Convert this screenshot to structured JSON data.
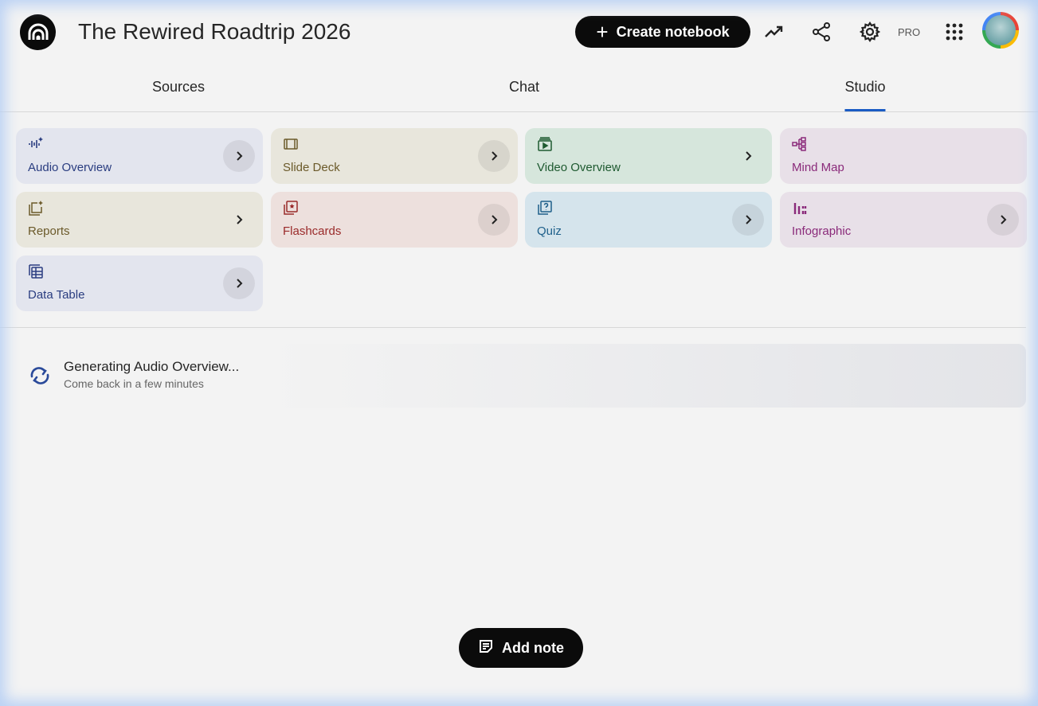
{
  "header": {
    "title": "The Rewired Roadtrip 2026",
    "create_label": "Create notebook",
    "pro_badge": "PRO",
    "icons": [
      "analytics-icon",
      "share-icon",
      "settings-icon",
      "apps-grid-icon"
    ]
  },
  "tabs": [
    {
      "label": "Sources",
      "active": false
    },
    {
      "label": "Chat",
      "active": false
    },
    {
      "label": "Studio",
      "active": true
    }
  ],
  "studio": {
    "cards": [
      {
        "label": "Audio Overview",
        "icon": "audio-waveform-sparkle-icon",
        "bg": "#e3e5ee",
        "color": "#2a3d80"
      },
      {
        "label": "Slide Deck",
        "icon": "slides-icon",
        "bg": "#e8e6dc",
        "color": "#6b5a2a"
      },
      {
        "label": "Video Overview",
        "icon": "video-icon",
        "bg": "#d6e6dc",
        "color": "#1e5a30"
      },
      {
        "label": "Mind Map",
        "icon": "mind-map-icon",
        "bg": "#e8e0e8",
        "color": "#8a2a7a"
      },
      {
        "label": "Reports",
        "icon": "reports-icon",
        "bg": "#e8e6dc",
        "color": "#6b5a2a"
      },
      {
        "label": "Flashcards",
        "icon": "flashcards-icon",
        "bg": "#ede0dd",
        "color": "#9a2a2a"
      },
      {
        "label": "Quiz",
        "icon": "quiz-icon",
        "bg": "#d5e4ec",
        "color": "#1e5f8a"
      },
      {
        "label": "Infographic",
        "icon": "infographic-icon",
        "bg": "#e8e0e8",
        "color": "#8a2a7a"
      },
      {
        "label": "Data Table",
        "icon": "table-icon",
        "bg": "#e3e5ee",
        "color": "#2a3d80"
      }
    ],
    "generating": {
      "title": "Generating Audio Overview...",
      "subtitle": "Come back in a few minutes"
    },
    "add_note_label": "Add note"
  }
}
